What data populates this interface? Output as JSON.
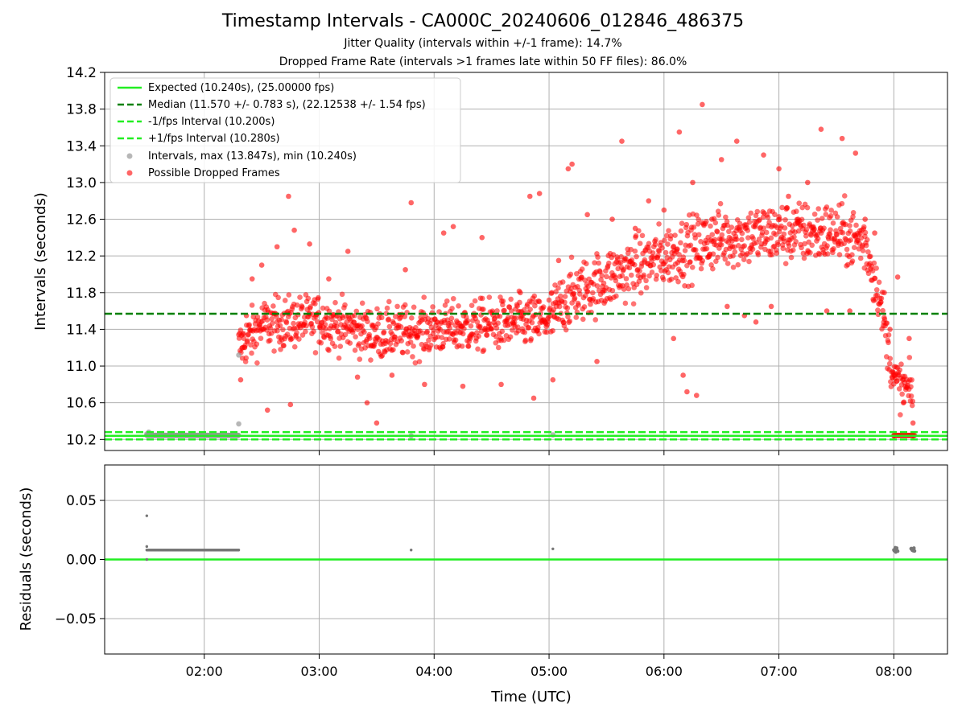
{
  "chart_data": {
    "title": "Timestamp Intervals - CA000C_20240606_012846_486375",
    "subtitle_1": "Jitter Quality (intervals within +/-1 frame): 14.7%",
    "subtitle_2": "Dropped Frame Rate (intervals >1 frames late within 50 FF files): 86.0%",
    "xlabel": "Time (UTC)",
    "x_ticks": [
      "02:00",
      "03:00",
      "04:00",
      "05:00",
      "06:00",
      "07:00",
      "08:00"
    ],
    "x_range": [
      "01:08",
      "08:28"
    ],
    "top_panel": {
      "type": "scatter",
      "ylabel": "Intervals (seconds)",
      "ylim": [
        10.08,
        14.2
      ],
      "y_ticks": [
        "10.2",
        "10.6",
        "11.0",
        "11.4",
        "11.8",
        "12.2",
        "12.6",
        "13.0",
        "13.4",
        "13.8",
        "14.2"
      ],
      "grid": true,
      "legend_position": "top-left",
      "lines": [
        {
          "name": "Expected (10.240s), (25.00000 fps)",
          "y": 10.24,
          "color": "#22ee22",
          "style": "solid"
        },
        {
          "name": "Median (11.570 +/- 0.783 s), (22.12538 +/- 1.54 fps)",
          "y": 11.57,
          "color": "#008000",
          "style": "dashed"
        },
        {
          "name": "-1/fps Interval (10.200s)",
          "y": 10.2,
          "color": "#22ee22",
          "style": "dashed"
        },
        {
          "name": "+1/fps Interval (10.280s)",
          "y": 10.28,
          "color": "#22ee22",
          "style": "dashed"
        }
      ],
      "series": [
        {
          "name": "Intervals, max (13.847s), min (10.240s)",
          "color": "#999999",
          "points": [
            [
              "01:30",
              10.26
            ],
            [
              "01:31",
              10.28
            ],
            [
              "02:18",
              11.12
            ],
            [
              "02:18",
              10.37
            ],
            [
              "03:48",
              10.24
            ],
            [
              "05:02",
              10.25
            ]
          ]
        },
        {
          "name": "Possible Dropped Frames",
          "color": "#ff0000",
          "points": [
            [
              "02:19",
              10.85
            ],
            [
              "02:20",
              11.2
            ],
            [
              "02:22",
              11.55
            ],
            [
              "02:25",
              11.95
            ],
            [
              "02:30",
              12.1
            ],
            [
              "02:33",
              10.52
            ],
            [
              "02:38",
              12.3
            ],
            [
              "02:44",
              12.85
            ],
            [
              "02:45",
              10.58
            ],
            [
              "02:47",
              12.48
            ],
            [
              "02:55",
              12.33
            ],
            [
              "03:05",
              11.95
            ],
            [
              "03:15",
              12.25
            ],
            [
              "03:20",
              10.88
            ],
            [
              "03:25",
              10.6
            ],
            [
              "03:30",
              10.38
            ],
            [
              "03:38",
              10.9
            ],
            [
              "03:45",
              12.05
            ],
            [
              "03:48",
              12.78
            ],
            [
              "03:55",
              10.8
            ],
            [
              "04:05",
              12.45
            ],
            [
              "04:10",
              12.52
            ],
            [
              "04:15",
              10.78
            ],
            [
              "04:25",
              12.4
            ],
            [
              "04:35",
              10.8
            ],
            [
              "04:45",
              11.8
            ],
            [
              "04:50",
              12.85
            ],
            [
              "04:52",
              10.65
            ],
            [
              "04:55",
              12.88
            ],
            [
              "05:02",
              10.85
            ],
            [
              "05:05",
              12.15
            ],
            [
              "05:10",
              13.15
            ],
            [
              "05:12",
              13.2
            ],
            [
              "05:20",
              12.65
            ],
            [
              "05:25",
              11.05
            ],
            [
              "05:33",
              12.6
            ],
            [
              "05:38",
              13.45
            ],
            [
              "05:45",
              12.5
            ],
            [
              "05:52",
              12.8
            ],
            [
              "06:00",
              12.7
            ],
            [
              "06:05",
              11.3
            ],
            [
              "06:08",
              13.55
            ],
            [
              "06:10",
              10.9
            ],
            [
              "06:12",
              10.72
            ],
            [
              "06:15",
              13.0
            ],
            [
              "06:17",
              10.68
            ],
            [
              "06:20",
              13.85
            ],
            [
              "06:25",
              12.6
            ],
            [
              "06:30",
              13.25
            ],
            [
              "06:33",
              11.65
            ],
            [
              "06:38",
              13.45
            ],
            [
              "06:42",
              11.55
            ],
            [
              "06:48",
              11.48
            ],
            [
              "06:52",
              13.3
            ],
            [
              "06:56",
              11.65
            ],
            [
              "07:00",
              13.15
            ],
            [
              "07:05",
              12.85
            ],
            [
              "07:10",
              12.6
            ],
            [
              "07:15",
              13.0
            ],
            [
              "07:22",
              13.58
            ],
            [
              "07:25",
              11.6
            ],
            [
              "07:33",
              13.48
            ],
            [
              "07:37",
              11.6
            ],
            [
              "07:40",
              13.32
            ],
            [
              "07:45",
              12.6
            ],
            [
              "07:50",
              12.45
            ],
            [
              "07:55",
              11.8
            ],
            [
              "07:58",
              11.4
            ],
            [
              "08:00",
              10.9
            ],
            [
              "08:02",
              11.97
            ],
            [
              "08:05",
              10.6
            ],
            [
              "08:08",
              11.3
            ],
            [
              "08:10",
              10.38
            ],
            [
              "08:00",
              10.24
            ],
            [
              "08:10",
              10.24
            ]
          ]
        }
      ],
      "trend_mean": [
        [
          "02:18",
          11.2
        ],
        [
          "02:30",
          11.45
        ],
        [
          "03:00",
          11.5
        ],
        [
          "03:30",
          11.35
        ],
        [
          "04:00",
          11.4
        ],
        [
          "04:30",
          11.45
        ],
        [
          "05:00",
          11.5
        ],
        [
          "05:10",
          11.75
        ],
        [
          "05:30",
          11.95
        ],
        [
          "06:00",
          12.2
        ],
        [
          "06:30",
          12.4
        ],
        [
          "07:00",
          12.45
        ],
        [
          "07:30",
          12.45
        ],
        [
          "07:45",
          12.35
        ],
        [
          "07:52",
          11.8
        ],
        [
          "08:00",
          10.85
        ],
        [
          "08:10",
          10.7
        ]
      ]
    },
    "bottom_panel": {
      "type": "scatter",
      "ylabel": "Residuals (seconds)",
      "ylim": [
        -0.08,
        0.08
      ],
      "y_ticks": [
        "0.05",
        "0.00",
        "−0.05"
      ],
      "zero_line_color": "#22ee22",
      "series": [
        {
          "name": "residuals",
          "color": "#777777",
          "points": [
            [
              "01:30",
              0.037
            ],
            [
              "01:30",
              0.011
            ],
            [
              "01:30",
              0.0
            ],
            [
              "03:48",
              0.008
            ],
            [
              "05:02",
              0.009
            ],
            [
              "08:00",
              0.008
            ],
            [
              "08:01",
              0.006
            ],
            [
              "08:10",
              0.008
            ]
          ],
          "dense_band": {
            "from": "01:30",
            "to": "02:18",
            "y": 0.008
          }
        }
      ]
    }
  }
}
